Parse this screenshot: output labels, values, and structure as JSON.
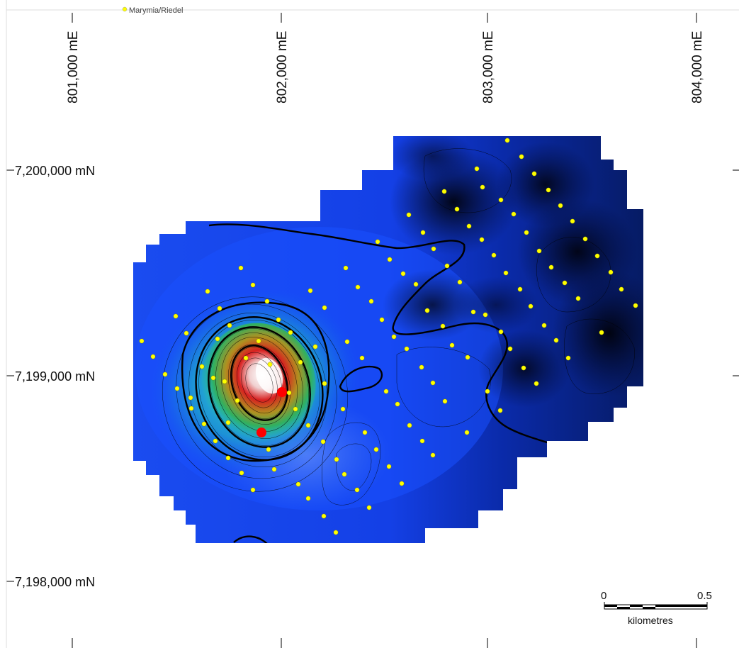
{
  "legend": {
    "sample_label": "Marymia/Riedel",
    "sample_color": "#ffff00"
  },
  "grid": {
    "eastings": [
      "801,000 mE",
      "802,000 mE",
      "803,000 mE",
      "804,000 mE"
    ],
    "northings": [
      "7,200,000 mN",
      "7,199,000 mN",
      "7,198,000 mN"
    ]
  },
  "scale_bar": {
    "label_start": "0",
    "label_end": "0.5",
    "units": "kilometres"
  },
  "colors": {
    "background": "#ffffff",
    "field_low": "#1040f0",
    "field_dark": "#020820",
    "anomaly_high": "#ffffff",
    "anomaly_mid": "#e01818",
    "drill_hole": "#ff0000"
  },
  "symbols": {
    "samples": "yellow-circle",
    "drill_holes": "red-circle"
  }
}
